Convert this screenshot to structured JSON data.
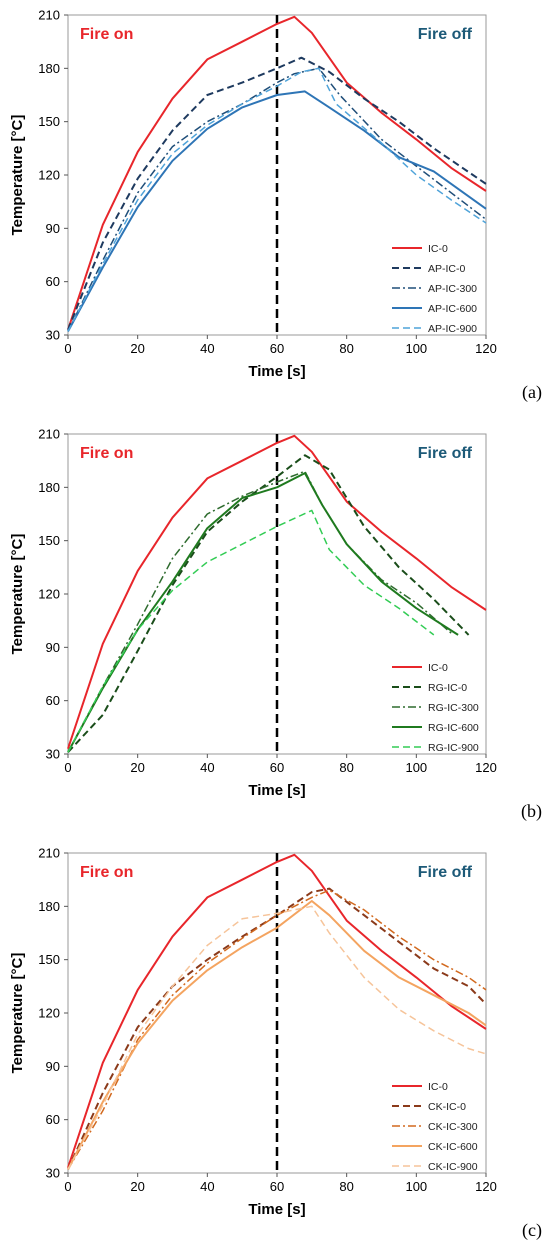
{
  "chart_data": [
    {
      "type": "line",
      "panel_label": "(a)",
      "xlabel": "Time [s]",
      "ylabel": "Temperature [°C]",
      "xlim": [
        0,
        120
      ],
      "ylim": [
        30,
        210
      ],
      "xticks": [
        "0",
        "20",
        "40",
        "60",
        "80",
        "100",
        "120"
      ],
      "yticks": [
        "30",
        "60",
        "90",
        "120",
        "150",
        "180",
        "210"
      ],
      "annotations": {
        "left": "Fire on",
        "right": "Fire off"
      },
      "vline_x": 60,
      "legend_position": "lower-right",
      "series": [
        {
          "name": "IC-0",
          "color": "#e8262b",
          "style": "solid",
          "width": 2,
          "x": [
            0,
            10,
            20,
            30,
            40,
            50,
            60,
            65,
            70,
            80,
            90,
            100,
            110,
            120
          ],
          "y": [
            33,
            92,
            133,
            163,
            185,
            195,
            205,
            209,
            200,
            172,
            155,
            140,
            124,
            111
          ]
        },
        {
          "name": "AP-IC-0",
          "color": "#1e3a5f",
          "style": "dash",
          "width": 2,
          "x": [
            0,
            10,
            20,
            30,
            40,
            50,
            60,
            67,
            75,
            85,
            95,
            105,
            120
          ],
          "y": [
            33,
            82,
            118,
            145,
            165,
            172,
            180,
            186,
            178,
            163,
            150,
            135,
            115
          ]
        },
        {
          "name": "AP-IC-300",
          "color": "#1f4e79",
          "style": "dashdot",
          "width": 1.5,
          "x": [
            0,
            10,
            20,
            30,
            40,
            50,
            60,
            65,
            72,
            78,
            90,
            100,
            110,
            120
          ],
          "y": [
            32,
            72,
            110,
            136,
            150,
            160,
            172,
            177,
            180,
            165,
            140,
            125,
            110,
            95
          ]
        },
        {
          "name": "AP-IC-600",
          "color": "#2e75b6",
          "style": "solid",
          "width": 2,
          "x": [
            0,
            10,
            20,
            30,
            40,
            50,
            60,
            68,
            75,
            85,
            95,
            105,
            120
          ],
          "y": [
            32,
            68,
            102,
            128,
            146,
            158,
            165,
            167,
            158,
            145,
            130,
            122,
            101
          ]
        },
        {
          "name": "AP-IC-900",
          "color": "#4fa3d9",
          "style": "dash",
          "width": 1.5,
          "x": [
            0,
            10,
            20,
            30,
            40,
            50,
            60,
            67,
            72,
            77,
            90,
            100,
            110,
            120
          ],
          "y": [
            32,
            70,
            106,
            132,
            148,
            160,
            170,
            178,
            180,
            160,
            138,
            120,
            106,
            93
          ]
        }
      ]
    },
    {
      "type": "line",
      "panel_label": "(b)",
      "xlabel": "Time [s]",
      "ylabel": "Temperature [°C]",
      "xlim": [
        0,
        120
      ],
      "ylim": [
        30,
        210
      ],
      "xticks": [
        "0",
        "20",
        "40",
        "60",
        "80",
        "100",
        "120"
      ],
      "yticks": [
        "30",
        "60",
        "90",
        "120",
        "150",
        "180",
        "210"
      ],
      "annotations": {
        "left": "Fire on",
        "right": "Fire off"
      },
      "vline_x": 60,
      "legend_position": "lower-right",
      "series": [
        {
          "name": "IC-0",
          "color": "#e8262b",
          "style": "solid",
          "width": 2,
          "x": [
            0,
            10,
            20,
            30,
            40,
            50,
            60,
            65,
            70,
            80,
            90,
            100,
            110,
            120
          ],
          "y": [
            33,
            92,
            133,
            163,
            185,
            195,
            205,
            209,
            200,
            172,
            155,
            140,
            124,
            111
          ]
        },
        {
          "name": "RG-IC-0",
          "color": "#1a4d1a",
          "style": "dash",
          "width": 2,
          "x": [
            0,
            10,
            20,
            30,
            40,
            50,
            60,
            68,
            75,
            85,
            95,
            105,
            115
          ],
          "y": [
            31,
            52,
            88,
            125,
            155,
            172,
            186,
            198,
            190,
            158,
            135,
            117,
            97
          ]
        },
        {
          "name": "RG-IC-300",
          "color": "#2e6b2e",
          "style": "dashdot",
          "width": 1.5,
          "x": [
            0,
            10,
            20,
            30,
            40,
            50,
            60,
            68,
            73,
            80,
            90,
            100,
            110
          ],
          "y": [
            31,
            68,
            103,
            140,
            165,
            175,
            183,
            189,
            170,
            148,
            128,
            115,
            98
          ]
        },
        {
          "name": "RG-IC-600",
          "color": "#1f7a1f",
          "style": "solid",
          "width": 2,
          "x": [
            0,
            10,
            20,
            30,
            40,
            50,
            60,
            68,
            73,
            80,
            90,
            100,
            112
          ],
          "y": [
            31,
            67,
            100,
            127,
            157,
            174,
            180,
            188,
            170,
            148,
            127,
            112,
            97
          ]
        },
        {
          "name": "RG-IC-900",
          "color": "#33cc55",
          "style": "dash",
          "width": 1.5,
          "x": [
            0,
            10,
            20,
            30,
            40,
            50,
            60,
            70,
            75,
            85,
            95,
            105
          ],
          "y": [
            31,
            68,
            100,
            122,
            138,
            148,
            158,
            167,
            145,
            125,
            112,
            97
          ]
        }
      ]
    },
    {
      "type": "line",
      "panel_label": "(c)",
      "xlabel": "Time [s]",
      "ylabel": "Temperature [°C]",
      "xlim": [
        0,
        120
      ],
      "ylim": [
        30,
        210
      ],
      "xticks": [
        "0",
        "20",
        "40",
        "60",
        "80",
        "100",
        "120"
      ],
      "yticks": [
        "30",
        "60",
        "90",
        "120",
        "150",
        "180",
        "210"
      ],
      "annotations": {
        "left": "Fire on",
        "right": "Fire off"
      },
      "vline_x": 60,
      "legend_position": "lower-right",
      "series": [
        {
          "name": "IC-0",
          "color": "#e8262b",
          "style": "solid",
          "width": 2,
          "x": [
            0,
            10,
            20,
            30,
            40,
            50,
            60,
            65,
            70,
            80,
            90,
            100,
            110,
            120
          ],
          "y": [
            33,
            92,
            133,
            163,
            185,
            195,
            205,
            209,
            200,
            172,
            155,
            140,
            124,
            111
          ]
        },
        {
          "name": "CK-IC-0",
          "color": "#8b3a1a",
          "style": "dash",
          "width": 2,
          "x": [
            0,
            10,
            20,
            30,
            40,
            50,
            60,
            70,
            75,
            85,
            95,
            105,
            115,
            120
          ],
          "y": [
            32,
            75,
            112,
            135,
            150,
            163,
            175,
            188,
            190,
            175,
            160,
            145,
            135,
            125
          ]
        },
        {
          "name": "CK-IC-300",
          "color": "#d2691e",
          "style": "dashdot",
          "width": 1.5,
          "x": [
            0,
            10,
            20,
            30,
            40,
            50,
            60,
            70,
            75,
            85,
            95,
            105,
            115,
            120
          ],
          "y": [
            32,
            65,
            105,
            130,
            148,
            162,
            175,
            185,
            189,
            178,
            163,
            150,
            140,
            133
          ]
        },
        {
          "name": "CK-IC-600",
          "color": "#f4a460",
          "style": "solid",
          "width": 2,
          "x": [
            0,
            10,
            20,
            30,
            40,
            50,
            60,
            70,
            75,
            85,
            95,
            105,
            115,
            120
          ],
          "y": [
            32,
            70,
            103,
            127,
            144,
            157,
            168,
            183,
            175,
            155,
            140,
            130,
            120,
            113
          ]
        },
        {
          "name": "CK-IC-900",
          "color": "#f6c49a",
          "style": "dash",
          "width": 1.5,
          "x": [
            0,
            10,
            20,
            30,
            40,
            50,
            60,
            70,
            75,
            85,
            95,
            105,
            115,
            120
          ],
          "y": [
            32,
            68,
            108,
            135,
            158,
            173,
            176,
            180,
            165,
            140,
            122,
            110,
            100,
            97
          ]
        }
      ]
    }
  ]
}
